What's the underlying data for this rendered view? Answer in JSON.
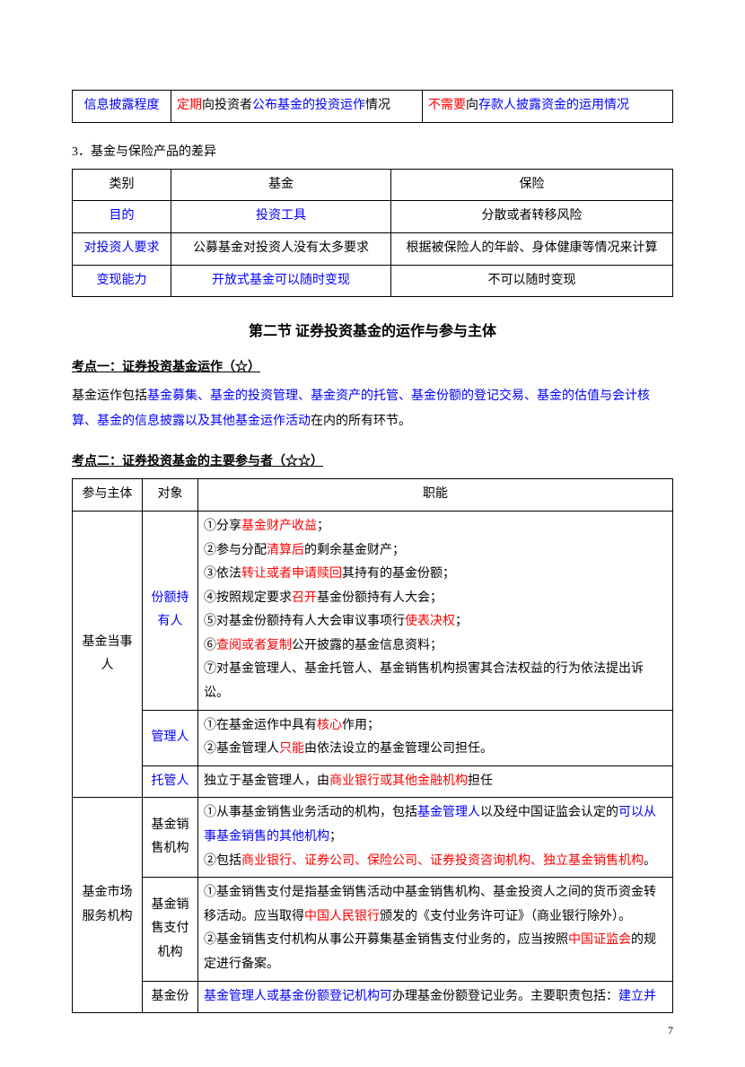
{
  "table1": {
    "col1_label": "信息披露程度",
    "col2_runs": [
      {
        "t": "定期",
        "c": "red"
      },
      {
        "t": "向投资者",
        "c": ""
      },
      {
        "t": "公布基金的投资运作",
        "c": "blue"
      },
      {
        "t": "情况",
        "c": ""
      }
    ],
    "col3_runs": [
      {
        "t": "不需要",
        "c": "red"
      },
      {
        "t": "向",
        "c": ""
      },
      {
        "t": "存款人披露资金的运用情况",
        "c": "blue"
      }
    ]
  },
  "subhead3": "3．基金与保险产品的差异",
  "table2": {
    "header": [
      "类别",
      "基金",
      "保险"
    ],
    "rows": [
      {
        "c1": {
          "t": "目的",
          "c": "blue"
        },
        "c2": {
          "t": "投资工具",
          "c": "blue"
        },
        "c3": {
          "t": "分散或者转移风险",
          "c": ""
        }
      },
      {
        "c1": {
          "t": "对投资人要求",
          "c": "blue"
        },
        "c2": {
          "t": "公募基金对投资人没有太多要求",
          "c": ""
        },
        "c3": {
          "t": "根据被保险人的年龄、身体健康等情况来计算",
          "c": ""
        }
      },
      {
        "c1": {
          "t": "变现能力",
          "c": "blue"
        },
        "c2": {
          "t": "开放式基金可以随时变现",
          "c": "blue"
        },
        "c3": {
          "t": "不可以随时变现",
          "c": ""
        }
      }
    ]
  },
  "section2_title": "第二节  证券投资基金的运作与参与主体",
  "kaodian1": "考点一：证券投资基金运作（☆）",
  "para1_runs": [
    {
      "t": "基金运作包括",
      "c": ""
    },
    {
      "t": "基金募集、基金的投资管理、基金资产的托管、基金份额的登记交易、基金的估值与会计核算、基金的信息披露以及其他基金运作活动",
      "c": "blue"
    },
    {
      "t": "在内的所有环节。",
      "c": ""
    }
  ],
  "kaodian2": "考点二：证券投资基金的主要参与者（☆☆）",
  "t3": {
    "header": [
      "参与主体",
      "对象",
      "职能"
    ],
    "groups": [
      {
        "subject": "基金当事人",
        "rows": [
          {
            "role": {
              "t": "份额持有人",
              "c": "blue"
            },
            "lines": [
              [
                {
                  "t": "①分享",
                  "c": ""
                },
                {
                  "t": "基金财产收益",
                  "c": "red"
                },
                {
                  "t": "；",
                  "c": ""
                }
              ],
              [
                {
                  "t": "②参与分配",
                  "c": ""
                },
                {
                  "t": "清算后",
                  "c": "red"
                },
                {
                  "t": "的剩余基金财产；",
                  "c": ""
                }
              ],
              [
                {
                  "t": "③依法",
                  "c": ""
                },
                {
                  "t": "转让或者申请赎回",
                  "c": "red"
                },
                {
                  "t": "其持有的基金份额；",
                  "c": ""
                }
              ],
              [
                {
                  "t": "④按照规定要求",
                  "c": ""
                },
                {
                  "t": "召开",
                  "c": "red"
                },
                {
                  "t": "基金份额持有人大会；",
                  "c": ""
                }
              ],
              [
                {
                  "t": "⑤对基金份额持有人大会审议事项行",
                  "c": ""
                },
                {
                  "t": "使表决权",
                  "c": "red"
                },
                {
                  "t": "；",
                  "c": ""
                }
              ],
              [
                {
                  "t": "⑥",
                  "c": ""
                },
                {
                  "t": "查阅或者复制",
                  "c": "red"
                },
                {
                  "t": "公开披露的基金信息资料；",
                  "c": ""
                }
              ],
              [
                {
                  "t": "⑦对基金管理人、基金托管人、基金销售机构损害其合法权益的行为依法提出诉讼。",
                  "c": ""
                }
              ]
            ]
          },
          {
            "role": {
              "t": "管理人",
              "c": "blue"
            },
            "lines": [
              [
                {
                  "t": "①在基金运作中具有",
                  "c": ""
                },
                {
                  "t": "核心",
                  "c": "red"
                },
                {
                  "t": "作用；",
                  "c": ""
                }
              ],
              [
                {
                  "t": "②基金管理人",
                  "c": ""
                },
                {
                  "t": "只能",
                  "c": "red"
                },
                {
                  "t": "由依法设立的基金管理公司担任。",
                  "c": ""
                }
              ]
            ]
          },
          {
            "role": {
              "t": "托管人",
              "c": "blue"
            },
            "lines": [
              [
                {
                  "t": "独立于基金管理人，由",
                  "c": ""
                },
                {
                  "t": "商业银行或其他金融机构",
                  "c": "red"
                },
                {
                  "t": "担任",
                  "c": ""
                }
              ]
            ]
          }
        ]
      },
      {
        "subject": "基金市场服务机构",
        "rows": [
          {
            "role": {
              "t": "基金销售机构",
              "c": ""
            },
            "lines": [
              [
                {
                  "t": "①从事基金销售业务活动的机构，包括",
                  "c": ""
                },
                {
                  "t": "基金管理人",
                  "c": "blue"
                },
                {
                  "t": "以及经中国证监会认定的",
                  "c": ""
                },
                {
                  "t": "可以从事基金销售的其他机构",
                  "c": "blue"
                },
                {
                  "t": "；",
                  "c": ""
                }
              ],
              [
                {
                  "t": "②包括",
                  "c": ""
                },
                {
                  "t": "商业银行、证券公司、保险公司、证券投资咨询机构、独立基金销售机构",
                  "c": "red"
                },
                {
                  "t": "。",
                  "c": ""
                }
              ]
            ]
          },
          {
            "role": {
              "t": "基金销售支付机构",
              "c": ""
            },
            "lines": [
              [
                {
                  "t": "①基金销售支付是指基金销售活动中基金销售机构、基金投资人之间的货币资金转移活动。应当取得",
                  "c": ""
                },
                {
                  "t": "中国人民银行",
                  "c": "red"
                },
                {
                  "t": "颁发的《支付业务许可证》（商业银行除外）。",
                  "c": ""
                }
              ],
              [
                {
                  "t": "②基金销售支付机构从事公开募集基金销售支付业务的，应当按照",
                  "c": ""
                },
                {
                  "t": "中国证监会",
                  "c": "red"
                },
                {
                  "t": "的规定进行备案。",
                  "c": ""
                }
              ]
            ]
          },
          {
            "role": {
              "t": "基金份",
              "c": ""
            },
            "lines": [
              [
                {
                  "t": "基金管理人或基金份额登记机构可",
                  "c": "blue"
                },
                {
                  "t": "办理基金份额登记业务。主要职责包括：",
                  "c": ""
                },
                {
                  "t": "建立并",
                  "c": "blue"
                }
              ]
            ]
          }
        ]
      }
    ]
  },
  "pagenum": "7"
}
